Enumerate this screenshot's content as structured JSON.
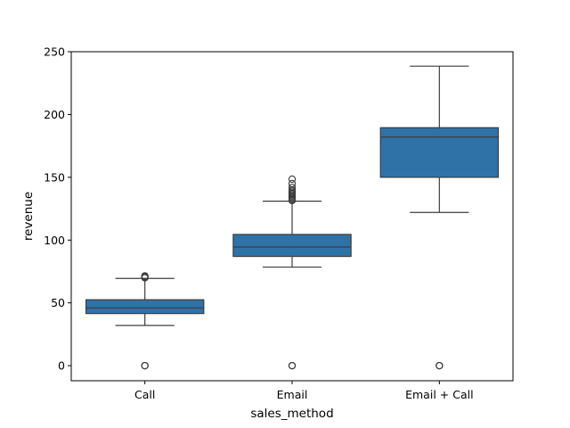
{
  "chart_data": {
    "type": "box",
    "xlabel": "sales_method",
    "ylabel": "revenue",
    "ylim": [
      -12,
      250
    ],
    "yticks": [
      0,
      50,
      100,
      150,
      200,
      250
    ],
    "categories": [
      "Call",
      "Email",
      "Email + Call"
    ],
    "box_color": "#2f72a8",
    "line_color": "#3d3d3d",
    "boxes": [
      {
        "category": "Call",
        "whisker_low": 32,
        "q1": 41.5,
        "median": 46,
        "q3": 52.5,
        "whisker_high": 69.5,
        "outliers": [
          0,
          0,
          0,
          70,
          70.5,
          71,
          71.5
        ]
      },
      {
        "category": "Email",
        "whisker_low": 78.5,
        "q1": 87,
        "median": 94.5,
        "q3": 104.5,
        "whisker_high": 131,
        "outliers": [
          0,
          0,
          0,
          131.5,
          132,
          133,
          134,
          135,
          136,
          137,
          138,
          139,
          140,
          142,
          145,
          148.5
        ]
      },
      {
        "category": "Email + Call",
        "whisker_low": 122,
        "q1": 150,
        "median": 182,
        "q3": 189.5,
        "whisker_high": 238.5,
        "outliers": [
          0,
          0,
          0
        ]
      }
    ]
  }
}
